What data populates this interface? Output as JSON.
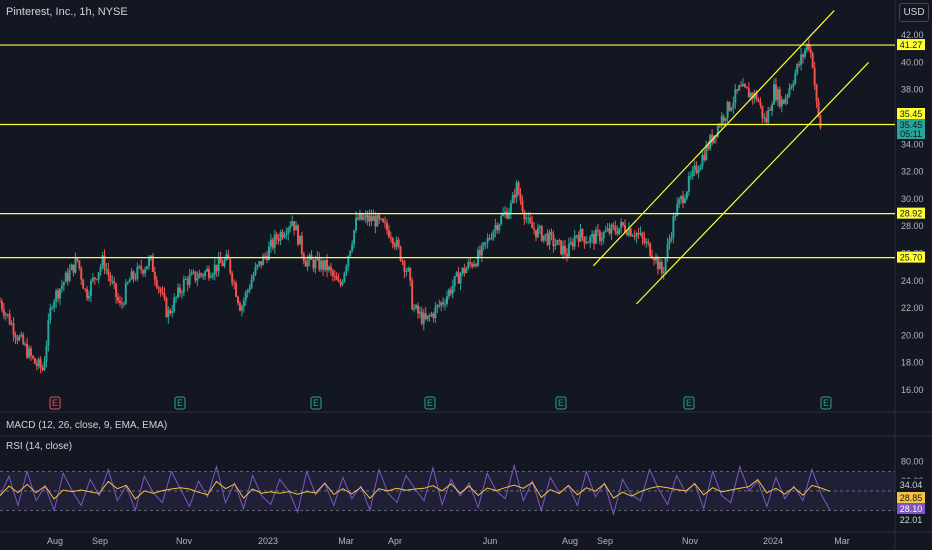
{
  "header": {
    "title": "Pinterest, Inc., 1h, NYSE",
    "currency": "USD"
  },
  "colors": {
    "background": "#131722",
    "up": "#26a69a",
    "down": "#ef5350",
    "level": "#ffff33",
    "rsi": "#7e57c2",
    "rsi_ma": "#f5c242"
  },
  "chart_data": [
    {
      "type": "candlestick",
      "title": "Pinterest, Inc., 1h, NYSE",
      "x_ticks": [
        "Aug",
        "Sep",
        "Nov",
        "2023",
        "Mar",
        "Apr",
        "Jun",
        "Aug",
        "Sep",
        "Nov",
        "2024",
        "Mar"
      ],
      "y_ticks": [
        42,
        40,
        38,
        36,
        34,
        32,
        30,
        28,
        26,
        24,
        22,
        20,
        18,
        16
      ],
      "y_tick_labels": [
        "42.00",
        "40.00",
        "38.00",
        "36.00",
        "34.00",
        "32.00",
        "30.00",
        "28.00",
        "26.00",
        "24.00",
        "22.00",
        "20.00",
        "18.00",
        "16.00"
      ],
      "ylim": [
        15,
        45
      ],
      "price_path": [
        [
          0,
          22.5
        ],
        [
          4,
          20.0
        ],
        [
          8,
          18.0
        ],
        [
          10,
          17.5
        ],
        [
          12,
          22.5
        ],
        [
          18,
          25.5
        ],
        [
          20,
          23.0
        ],
        [
          24,
          25.5
        ],
        [
          28,
          22.0
        ],
        [
          30,
          24.0
        ],
        [
          35,
          25.5
        ],
        [
          39,
          21.5
        ],
        [
          43,
          24.0
        ],
        [
          47,
          24.5
        ],
        [
          53,
          25.5
        ],
        [
          56,
          22.0
        ],
        [
          59,
          24.5
        ],
        [
          64,
          27.0
        ],
        [
          68,
          28.5
        ],
        [
          71,
          25.5
        ],
        [
          76,
          25.0
        ],
        [
          79,
          23.5
        ],
        [
          83,
          28.5
        ],
        [
          87,
          28.5
        ],
        [
          91,
          27.5
        ],
        [
          95,
          24.5
        ],
        [
          96,
          22.0
        ],
        [
          99,
          21.0
        ],
        [
          103,
          22.5
        ],
        [
          107,
          24.5
        ],
        [
          112,
          26.0
        ],
        [
          115,
          28.0
        ],
        [
          119,
          29.5
        ],
        [
          120,
          31.0
        ],
        [
          123,
          28.0
        ],
        [
          128,
          27.0
        ],
        [
          132,
          26.0
        ],
        [
          134,
          27.5
        ],
        [
          137,
          27.0
        ],
        [
          141,
          27.5
        ],
        [
          145,
          28.0
        ],
        [
          148,
          27.5
        ],
        [
          152,
          26.0
        ],
        [
          154,
          24.5
        ],
        [
          157,
          29.0
        ],
        [
          160,
          31.0
        ],
        [
          164,
          33.5
        ],
        [
          168,
          36.0
        ],
        [
          172,
          38.0
        ],
        [
          176,
          37.5
        ],
        [
          178,
          35.5
        ],
        [
          180,
          38.0
        ],
        [
          182,
          37.0
        ],
        [
          184,
          38.5
        ],
        [
          186,
          40.0
        ],
        [
          188,
          41.5
        ],
        [
          189,
          40.0
        ],
        [
          190,
          36.5
        ],
        [
          191,
          35.0
        ]
      ],
      "horizontal_levels": [
        41.27,
        35.45,
        28.92,
        25.7
      ],
      "trend_lines": [
        {
          "from": [
            138,
            25.1
          ],
          "to": [
            194,
            43.8
          ]
        },
        {
          "from": [
            148,
            22.3
          ],
          "to": [
            202,
            40.0
          ]
        }
      ],
      "earnings_markers": [
        "E",
        "E",
        "E",
        "E",
        "E",
        "E",
        "E"
      ],
      "price_labels": [
        {
          "value": 41.27,
          "text": "41.27",
          "color": "#ffff33"
        },
        {
          "value": 35.45,
          "text": "35.45",
          "color": "#ffff33"
        },
        {
          "value": 35.45,
          "text": "35.45",
          "color": "#26a69a"
        },
        {
          "value": 34.0,
          "text": "05:11",
          "color": "#26a69a"
        },
        {
          "value": 28.92,
          "text": "28.92",
          "color": "#ffff33"
        },
        {
          "value": 25.7,
          "text": "25.70",
          "color": "#ffff33"
        }
      ]
    },
    {
      "type": "line",
      "title": "MACD (12, 26, close, 9, EMA, EMA)"
    },
    {
      "type": "line",
      "title": "RSI (14, close)",
      "y_tick_labels": [
        "80.00",
        "60.00",
        "40.00"
      ],
      "y_ticks": [
        80,
        60,
        40
      ],
      "ylim": [
        15,
        90
      ],
      "band": [
        30,
        70
      ],
      "series": [
        {
          "values": [
            45,
            65,
            35,
            70,
            40,
            55,
            30,
            68,
            50,
            35,
            62,
            45,
            72,
            40,
            55,
            30,
            65,
            48,
            38,
            70,
            52,
            34,
            60,
            44,
            75,
            38,
            58,
            32,
            66,
            45,
            36,
            62,
            50,
            28,
            70,
            46,
            58,
            35,
            64,
            42,
            55,
            30,
            72,
            48,
            38,
            66,
            52,
            40,
            74,
            36,
            62,
            45,
            58,
            33,
            68,
            50,
            42,
            76,
            40,
            60,
            30,
            64,
            48,
            55,
            35,
            70,
            44,
            58,
            26,
            62,
            46,
            40,
            72,
            52,
            36,
            66,
            48,
            58,
            32,
            70,
            45,
            38,
            75,
            50,
            60,
            34,
            64,
            42,
            55,
            40,
            72,
            47,
            30
          ]
        }
      ],
      "last_values": [
        {
          "value": 34.04,
          "text": "34.04",
          "color": "#cccccc"
        },
        {
          "value": 28.85,
          "text": "28.85",
          "color": "#f5c242"
        },
        {
          "value": 28.1,
          "text": "28.10",
          "color": "#7e57c2"
        },
        {
          "value": 22.01,
          "text": "22.01",
          "color": "#cccccc"
        }
      ]
    }
  ]
}
